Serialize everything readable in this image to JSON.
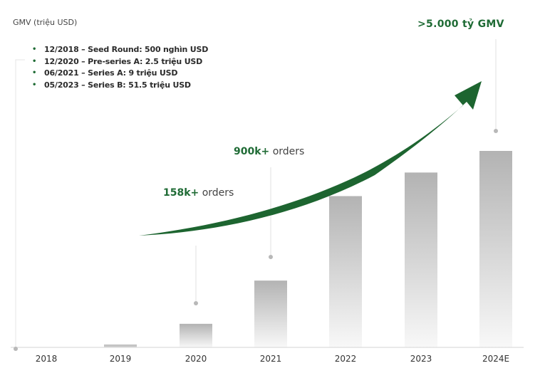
{
  "chart_data": {
    "type": "bar",
    "title": "",
    "ylabel": "GMV (triệu USD)",
    "xlabel": "",
    "categories": [
      "2018",
      "2019",
      "2020",
      "2021",
      "2022",
      "2023",
      "2024E"
    ],
    "values_relative_pct": [
      0,
      1.5,
      12,
      34,
      77,
      89,
      100
    ],
    "ylim": [
      0,
      100
    ],
    "grid": false,
    "legend": "none",
    "funding_rounds": [
      {
        "date": "12/2018",
        "text": "12/2018 – Seed Round: 500 nghìn USD"
      },
      {
        "date": "12/2020",
        "text": "12/2020 – Pre-series A: 2.5 triệu USD"
      },
      {
        "date": "06/2021",
        "text": "06/2021 – Series A: 9 triệu USD"
      },
      {
        "date": "05/2023",
        "text": "05/2023 – Series B: 51.5 triệu USD"
      }
    ],
    "annotations": [
      {
        "category": "2020",
        "number": "158k+",
        "label": "orders"
      },
      {
        "category": "2021",
        "number": "900k+",
        "label": "orders"
      },
      {
        "category": "2024E",
        "number": ">5.000 tỷ GMV",
        "label": ""
      }
    ],
    "trend_arrow": "growth",
    "colors": {
      "accent": "#1f6b35",
      "bar_top": "#b3b3b3",
      "bar_bottom": "#f7f7f7",
      "axis": "#dddddd",
      "marker": "#b0b0b0"
    }
  }
}
